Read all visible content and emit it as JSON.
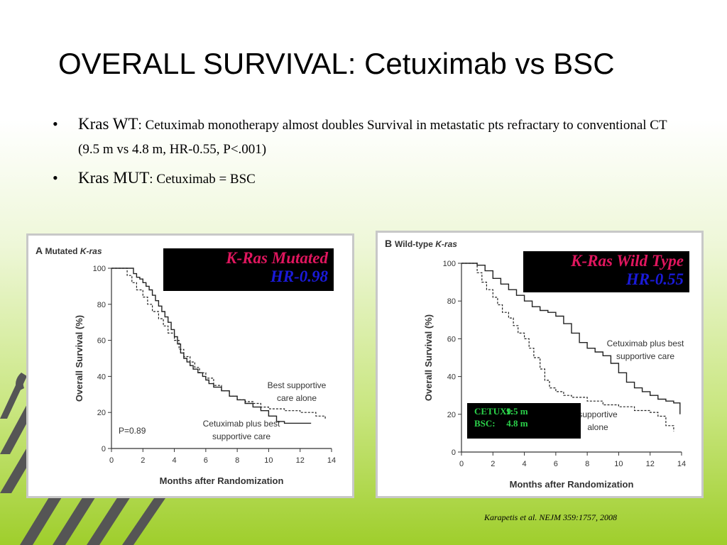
{
  "slide": {
    "title": "OVERALL SURVIVAL: Cetuximab vs BSC",
    "bullets": [
      {
        "bullet": "•",
        "term": "Kras WT",
        "sep": ": ",
        "text": "Cetuximab monotherapy almost doubles Survival in metastatic pts  refractary to conventional  CT (9.5 m vs 4.8 m, HR-0.55, P<.001)"
      },
      {
        "bullet": "•",
        "term": "Kras MUT",
        "sep": ":  ",
        "text": "Cetuximab = BSC"
      }
    ],
    "citation": "Karapetis et al. NEJM 359:1757, 2008"
  },
  "overlays": {
    "a": {
      "line1": "K-Ras Mutated",
      "line2": "HR-0.98"
    },
    "b": {
      "line1": "K-Ras Wild Type",
      "line2": "HR-0.55"
    },
    "medians": [
      {
        "label": "CETUXI:",
        "value": "9.5 m"
      },
      {
        "label": "BSC:",
        "value": "4.8 m"
      }
    ]
  },
  "colors": {
    "overlay_red": "#e0165e",
    "overlay_blue": "#1a1ad8",
    "median_green": "#2bd14a",
    "panel_border": "#c8c8c8",
    "background_green": "#9fce2c"
  },
  "chart_data": [
    {
      "type": "line",
      "panel_letter": "A",
      "title_prefix": "Mutated ",
      "title_italic": "K-ras",
      "xlabel": "Months after Randomization",
      "ylabel": "Overall Survival (%)",
      "xlim": [
        0,
        14
      ],
      "ylim": [
        0,
        100
      ],
      "xticks": [
        0,
        2,
        4,
        6,
        8,
        10,
        12,
        14
      ],
      "yticks": [
        0,
        20,
        40,
        60,
        80,
        100
      ],
      "grid": false,
      "annotations": [
        {
          "key": "bsc",
          "lines": [
            "Best supportive",
            "care alone"
          ]
        },
        {
          "key": "cetux",
          "lines": [
            "Cetuximab plus best",
            "supportive care"
          ]
        },
        {
          "key": "p",
          "lines": [
            "P=0.89"
          ]
        }
      ],
      "series": [
        {
          "key": "cetux",
          "style": "solid",
          "x": [
            0,
            0.5,
            1.0,
            1.4,
            1.6,
            1.8,
            2.0,
            2.2,
            2.4,
            2.6,
            2.8,
            3.0,
            3.2,
            3.4,
            3.6,
            3.8,
            4.0,
            4.2,
            4.4,
            4.6,
            4.8,
            5.0,
            5.2,
            5.5,
            5.8,
            6.0,
            6.2,
            6.5,
            7.0,
            7.5,
            8.0,
            8.5,
            9.0,
            9.5,
            10.0,
            10.5,
            11.0,
            12.7
          ],
          "y": [
            100,
            100,
            100,
            97,
            95,
            94,
            92,
            90,
            88,
            85,
            82,
            79,
            76,
            73,
            70,
            66,
            62,
            58,
            53,
            50,
            48,
            46,
            44,
            42,
            40,
            38,
            36,
            34,
            32,
            29,
            27,
            25,
            23,
            21,
            18,
            15,
            14,
            14
          ]
        },
        {
          "key": "bsc",
          "style": "dashed",
          "x": [
            0,
            0.5,
            1.0,
            1.3,
            1.6,
            2.0,
            2.3,
            2.6,
            3.0,
            3.3,
            3.6,
            4.0,
            4.3,
            4.6,
            5.0,
            5.3,
            5.6,
            6.0,
            6.5,
            7.0,
            7.5,
            8.0,
            8.5,
            9.0,
            9.5,
            10.0,
            11.0,
            12.0,
            13.0,
            13.6
          ],
          "y": [
            100,
            100,
            96,
            92,
            88,
            84,
            80,
            76,
            72,
            68,
            64,
            60,
            55,
            51,
            48,
            45,
            42,
            39,
            35,
            32,
            29,
            27,
            26,
            25,
            23,
            22,
            21,
            20,
            18,
            16
          ]
        }
      ]
    },
    {
      "type": "line",
      "panel_letter": "B",
      "title_prefix": "Wild-type ",
      "title_italic": "K-ras",
      "xlabel": "Months after Randomization",
      "ylabel": "Overall Survival (%)",
      "xlim": [
        0,
        14
      ],
      "ylim": [
        0,
        100
      ],
      "xticks": [
        0,
        2,
        4,
        6,
        8,
        10,
        12,
        14
      ],
      "yticks": [
        0,
        20,
        40,
        60,
        80,
        100
      ],
      "grid": false,
      "annotations": [
        {
          "key": "cetux",
          "lines": [
            "Cetuximab plus best",
            "supportive care"
          ]
        },
        {
          "key": "bsc",
          "lines": [
            "supportive",
            "alone"
          ]
        }
      ],
      "series": [
        {
          "key": "cetux",
          "style": "solid",
          "x": [
            0,
            1.0,
            1.5,
            2.0,
            2.5,
            3.0,
            3.5,
            4.0,
            4.5,
            5.0,
            5.5,
            6.0,
            6.5,
            7.0,
            7.5,
            8.0,
            8.5,
            9.0,
            9.5,
            10.0,
            10.5,
            11.0,
            11.5,
            12.0,
            12.5,
            13.0,
            13.5,
            13.9
          ],
          "y": [
            100,
            99,
            96,
            92,
            89,
            86,
            83,
            80,
            77,
            75,
            74,
            72,
            68,
            63,
            58,
            55,
            53,
            51,
            47,
            42,
            37,
            34,
            32,
            30,
            28,
            27,
            26,
            20
          ]
        },
        {
          "key": "bsc",
          "style": "dashed",
          "x": [
            0,
            0.8,
            1.0,
            1.3,
            1.6,
            2.0,
            2.3,
            2.6,
            3.0,
            3.3,
            3.6,
            4.0,
            4.3,
            4.6,
            5.0,
            5.3,
            5.6,
            6.0,
            6.5,
            7.0,
            8.0,
            9.0,
            10.0,
            11.0,
            12.0,
            12.5,
            13.0,
            13.5
          ],
          "y": [
            100,
            100,
            95,
            90,
            86,
            82,
            78,
            74,
            71,
            67,
            63,
            60,
            55,
            50,
            44,
            38,
            34,
            32,
            30,
            29,
            27,
            25,
            24,
            22,
            21,
            19,
            14,
            11
          ]
        }
      ]
    }
  ]
}
